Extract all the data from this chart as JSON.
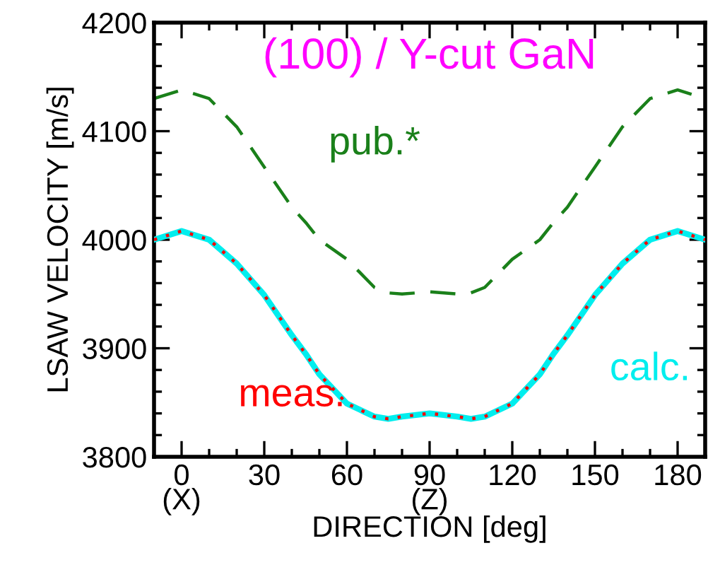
{
  "chart_data": {
    "type": "line",
    "title": "(100) / Y-cut GaN",
    "xlabel": "DIRECTION [deg]",
    "ylabel": "LSAW VELOCITY [m/s]",
    "x": [
      -10,
      0,
      10,
      20,
      30,
      40,
      45,
      50,
      60,
      70,
      75,
      80,
      90,
      100,
      105,
      110,
      120,
      130,
      135,
      140,
      150,
      160,
      170,
      180,
      190
    ],
    "series": [
      {
        "name": "pub.*",
        "color": "#1a801a",
        "line_style": "dashed",
        "values": [
          4130,
          4138,
          4130,
          4104,
          4067,
          4030,
          4016,
          4000,
          3982,
          3956,
          3951,
          3950,
          3952,
          3950,
          3951,
          3956,
          3982,
          4000,
          4016,
          4030,
          4067,
          4104,
          4130,
          4138,
          4130
        ]
      },
      {
        "name": "calc.",
        "color": "#00eeee",
        "line_style": "solid",
        "values": [
          4000,
          4008,
          4000,
          3978,
          3949,
          3912,
          3895,
          3876,
          3849,
          3837,
          3835,
          3837,
          3840,
          3837,
          3835,
          3837,
          3849,
          3876,
          3895,
          3912,
          3949,
          3978,
          4000,
          4008,
          4000
        ]
      },
      {
        "name": "meas.",
        "color": "#ff0000",
        "line_style": "dotted",
        "values": [
          4000,
          4008,
          4000,
          3978,
          3949,
          3912,
          3895,
          3876,
          3849,
          3837,
          3835,
          3837,
          3840,
          3837,
          3835,
          3837,
          3849,
          3876,
          3895,
          3912,
          3949,
          3978,
          4000,
          4008,
          4000
        ]
      }
    ],
    "xlim": [
      -10,
      190
    ],
    "xticks": [
      {
        "value": 0,
        "label": "0\n(X)"
      },
      30,
      60,
      {
        "value": 90,
        "label": "90\n(Z)"
      },
      120,
      150,
      180
    ],
    "ylim": [
      3800,
      4200
    ],
    "yticks": [
      3800,
      3900,
      4000,
      4100,
      4200
    ],
    "grid": false,
    "legend": false
  }
}
